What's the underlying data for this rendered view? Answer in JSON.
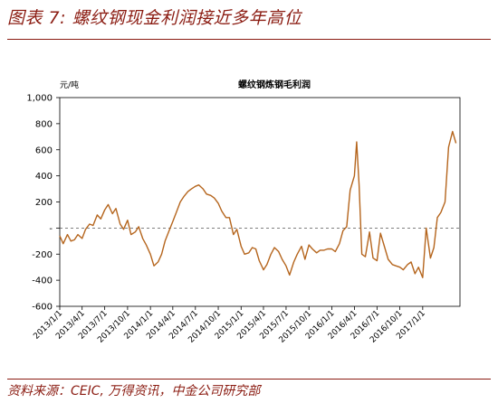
{
  "figure_label": "图表 7:",
  "figure_title": "螺纹钢现金利润接近多年高位",
  "source": "资料来源：CEIC, 万得资讯，中金公司研究部",
  "colors": {
    "brand": "#8b1c12",
    "series": "#b5651d",
    "axis": "#000000"
  },
  "chart_data": {
    "type": "line",
    "title": "螺纹钢炼钢毛利润",
    "unit": "元/吨",
    "ylim": [
      -600,
      1000
    ],
    "yticks": [
      {
        "value": 1000,
        "label": "1,000"
      },
      {
        "value": 800,
        "label": "800"
      },
      {
        "value": 600,
        "label": "600"
      },
      {
        "value": 400,
        "label": "400"
      },
      {
        "value": 200,
        "label": "200"
      },
      {
        "value": 0,
        "label": "-"
      },
      {
        "value": -200,
        "label": "-200"
      },
      {
        "value": -400,
        "label": "-400"
      },
      {
        "value": -600,
        "label": "-600"
      }
    ],
    "xlim": [
      "2013-01-01",
      "2017-05-31"
    ],
    "xticks": [
      "2013/1/1",
      "2013/4/1",
      "2013/7/1",
      "2013/10/1",
      "2014/1/1",
      "2014/4/1",
      "2014/7/1",
      "2014/10/1",
      "2015/1/1",
      "2015/4/1",
      "2015/7/1",
      "2015/10/1",
      "2016/1/1",
      "2016/4/1",
      "2016/7/1",
      "2016/10/1",
      "2017/1/1"
    ],
    "grid": false,
    "zero_line": "dashed",
    "x": [
      "2013-01-01",
      "2013-01-15",
      "2013-02-01",
      "2013-02-15",
      "2013-03-01",
      "2013-03-15",
      "2013-04-01",
      "2013-04-15",
      "2013-05-01",
      "2013-05-15",
      "2013-06-01",
      "2013-06-15",
      "2013-07-01",
      "2013-07-15",
      "2013-08-01",
      "2013-08-15",
      "2013-09-01",
      "2013-09-15",
      "2013-10-01",
      "2013-10-15",
      "2013-11-01",
      "2013-11-15",
      "2013-12-01",
      "2013-12-15",
      "2014-01-01",
      "2014-01-15",
      "2014-02-01",
      "2014-02-15",
      "2014-03-01",
      "2014-03-15",
      "2014-04-01",
      "2014-04-15",
      "2014-05-01",
      "2014-05-15",
      "2014-06-01",
      "2014-06-15",
      "2014-07-01",
      "2014-07-15",
      "2014-08-01",
      "2014-08-15",
      "2014-09-01",
      "2014-09-15",
      "2014-10-01",
      "2014-10-15",
      "2014-11-01",
      "2014-11-15",
      "2014-12-01",
      "2014-12-15",
      "2015-01-01",
      "2015-01-15",
      "2015-02-01",
      "2015-02-15",
      "2015-03-01",
      "2015-03-15",
      "2015-04-01",
      "2015-04-15",
      "2015-05-01",
      "2015-05-15",
      "2015-06-01",
      "2015-06-15",
      "2015-07-01",
      "2015-07-15",
      "2015-08-01",
      "2015-08-15",
      "2015-09-01",
      "2015-09-15",
      "2015-10-01",
      "2015-10-15",
      "2015-11-01",
      "2015-11-15",
      "2015-12-01",
      "2015-12-15",
      "2016-01-01",
      "2016-01-15",
      "2016-02-01",
      "2016-02-15",
      "2016-03-01",
      "2016-03-15",
      "2016-04-01",
      "2016-04-10",
      "2016-04-20",
      "2016-05-01",
      "2016-05-15",
      "2016-06-01",
      "2016-06-15",
      "2016-07-01",
      "2016-07-15",
      "2016-08-01",
      "2016-08-15",
      "2016-09-01",
      "2016-09-15",
      "2016-10-01",
      "2016-10-15",
      "2016-11-01",
      "2016-11-15",
      "2016-12-01",
      "2016-12-15",
      "2017-01-01",
      "2017-01-15",
      "2017-02-01",
      "2017-02-15",
      "2017-03-01",
      "2017-03-15",
      "2017-04-01",
      "2017-04-15",
      "2017-05-01",
      "2017-05-15"
    ],
    "series": [
      {
        "values": [
          -60,
          -120,
          -50,
          -100,
          -90,
          -50,
          -80,
          -10,
          30,
          20,
          100,
          70,
          140,
          180,
          110,
          150,
          30,
          -10,
          60,
          -50,
          -30,
          10,
          -80,
          -130,
          -200,
          -290,
          -260,
          -200,
          -100,
          -30,
          50,
          120,
          200,
          240,
          280,
          300,
          320,
          330,
          300,
          260,
          250,
          230,
          190,
          130,
          80,
          80,
          -50,
          -10,
          -140,
          -200,
          -190,
          -150,
          -160,
          -250,
          -320,
          -280,
          -200,
          -150,
          -180,
          -240,
          -290,
          -360,
          -260,
          -200,
          -140,
          -240,
          -130,
          -160,
          -190,
          -170,
          -170,
          -160,
          -160,
          -180,
          -120,
          -20,
          10,
          290,
          400,
          660,
          330,
          -200,
          -220,
          -30,
          -230,
          -250,
          -40,
          -150,
          -240,
          -280,
          -290,
          -300,
          -320,
          -280,
          -260,
          -350,
          -300,
          -380,
          0,
          -230,
          -150,
          80,
          120,
          200,
          620,
          740,
          650
        ]
      }
    ]
  }
}
